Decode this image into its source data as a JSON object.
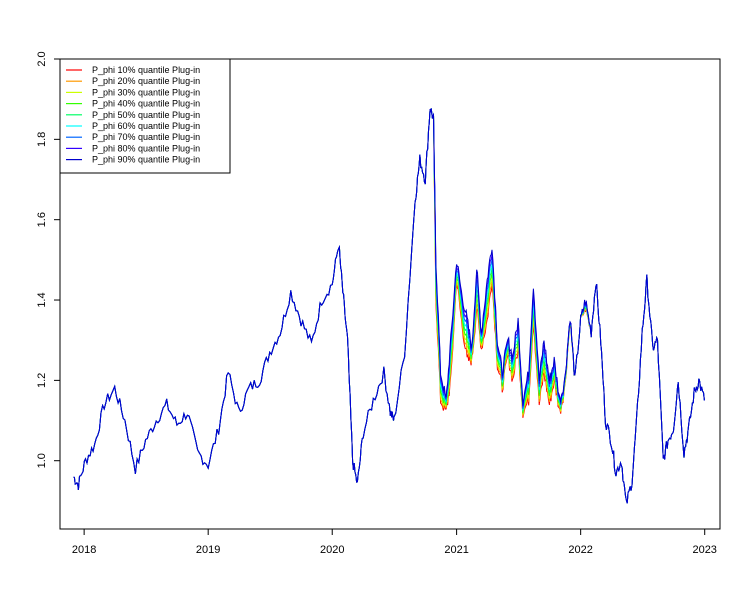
{
  "chart_data": {
    "type": "line",
    "title": "",
    "xlabel": "",
    "ylabel": "",
    "x_ticks": [
      "2018",
      "2019",
      "2020",
      "2021",
      "2022",
      "2023"
    ],
    "y_ticks": [
      "1.0",
      "1.2",
      "1.4",
      "1.6",
      "1.8",
      "2.0"
    ],
    "xlim": [
      "2017-10-22",
      "2023-02-15"
    ],
    "ylim": [
      0.83,
      2.0
    ],
    "legend_position": "top-left",
    "legend": [
      {
        "label": "P_phi 10% quantile Plug-in",
        "color": "#FF0000"
      },
      {
        "label": "P_phi 20% quantile Plug-in",
        "color": "#FF9900"
      },
      {
        "label": "P_phi 30% quantile Plug-in",
        "color": "#CCFF00"
      },
      {
        "label": "P_phi 40% quantile Plug-in",
        "color": "#33FF00"
      },
      {
        "label": "P_phi 50% quantile Plug-in",
        "color": "#00FF66"
      },
      {
        "label": "P_phi 60% quantile Plug-in",
        "color": "#00FFFF"
      },
      {
        "label": "P_phi 70% quantile Plug-in",
        "color": "#0066FF"
      },
      {
        "label": "P_phi 80% quantile Plug-in",
        "color": "#3300FF"
      },
      {
        "label": "P_phi 90% quantile Plug-in",
        "color": "#0000CC"
      }
    ],
    "shared_path": {
      "x": [
        "2017-12-01",
        "2017-12-15",
        "2018-01-05",
        "2018-02-01",
        "2018-03-01",
        "2018-04-01",
        "2018-05-01",
        "2018-06-01",
        "2018-07-01",
        "2018-08-01",
        "2018-09-01",
        "2018-10-01",
        "2018-11-01",
        "2018-12-01",
        "2019-01-01",
        "2019-02-01",
        "2019-03-01",
        "2019-04-01",
        "2019-05-01",
        "2019-06-01",
        "2019-07-01",
        "2019-08-01",
        "2019-09-01",
        "2019-10-01",
        "2019-11-01",
        "2019-12-01",
        "2020-01-01",
        "2020-01-20",
        "2020-02-01",
        "2020-02-15",
        "2020-03-01",
        "2020-03-15",
        "2020-04-01",
        "2020-05-01",
        "2020-06-01",
        "2020-06-20",
        "2020-07-01",
        "2020-08-01",
        "2020-09-01",
        "2020-09-15",
        "2020-10-01",
        "2020-10-15",
        "2020-10-25"
      ],
      "y": [
        0.96,
        0.94,
        1.0,
        1.04,
        1.14,
        1.18,
        1.1,
        0.98,
        1.05,
        1.1,
        1.14,
        1.09,
        1.12,
        1.02,
        0.99,
        1.08,
        1.22,
        1.12,
        1.18,
        1.2,
        1.27,
        1.32,
        1.42,
        1.35,
        1.29,
        1.4,
        1.44,
        1.54,
        1.42,
        1.3,
        1.0,
        0.94,
        1.07,
        1.15,
        1.22,
        1.12,
        1.1,
        1.27,
        1.65,
        1.75,
        1.7,
        1.88,
        1.85
      ]
    },
    "series_tail": {
      "x": [
        "2020-11-01",
        "2020-11-15",
        "2020-12-01",
        "2020-12-15",
        "2021-01-01",
        "2021-01-15",
        "2021-02-01",
        "2021-02-15",
        "2021-03-01",
        "2021-03-15",
        "2021-04-01",
        "2021-04-15",
        "2021-05-01",
        "2021-05-15",
        "2021-06-01",
        "2021-06-15",
        "2021-07-01",
        "2021-07-15",
        "2021-08-01",
        "2021-08-15",
        "2021-09-01",
        "2021-09-15",
        "2021-10-01",
        "2021-10-15",
        "2021-11-01",
        "2021-11-15",
        "2021-12-01",
        "2021-12-15",
        "2022-01-01",
        "2022-01-15",
        "2022-02-01",
        "2022-02-15",
        "2022-03-01",
        "2022-03-15",
        "2022-04-01",
        "2022-04-15",
        "2022-05-01",
        "2022-05-15",
        "2022-06-01",
        "2022-06-15",
        "2022-07-01",
        "2022-07-15",
        "2022-08-01",
        "2022-08-15",
        "2022-09-01",
        "2022-09-15",
        "2022-10-01",
        "2022-10-15",
        "2022-11-01",
        "2022-11-15",
        "2022-12-01",
        "2022-12-15",
        "2022-12-31"
      ],
      "p90": [
        1.5,
        1.22,
        1.15,
        1.3,
        1.5,
        1.42,
        1.35,
        1.28,
        1.48,
        1.32,
        1.45,
        1.54,
        1.3,
        1.22,
        1.3,
        1.26,
        1.35,
        1.15,
        1.22,
        1.44,
        1.2,
        1.3,
        1.2,
        1.25,
        1.15,
        1.2,
        1.36,
        1.2,
        1.35,
        1.4,
        1.32,
        1.45,
        1.3,
        1.1,
        1.05,
        0.97,
        1.0,
        0.89,
        0.95,
        1.1,
        1.32,
        1.45,
        1.28,
        1.3,
        1.0,
        1.05,
        1.08,
        1.2,
        1.02,
        1.08,
        1.17,
        1.2,
        1.15
      ],
      "p10": [
        1.4,
        1.15,
        1.12,
        1.2,
        1.45,
        1.35,
        1.25,
        1.25,
        1.38,
        1.28,
        1.35,
        1.45,
        1.24,
        1.18,
        1.26,
        1.2,
        1.28,
        1.12,
        1.15,
        1.35,
        1.14,
        1.22,
        1.14,
        1.2,
        1.12,
        1.18,
        1.35,
        1.2,
        1.35,
        1.38,
        1.32,
        1.45,
        1.3,
        1.1,
        1.05,
        0.97,
        1.0,
        0.89,
        0.95,
        1.1,
        1.32,
        1.45,
        1.28,
        1.3,
        1.0,
        1.05,
        1.08,
        1.2,
        1.02,
        1.08,
        1.17,
        1.2,
        1.15
      ]
    }
  }
}
